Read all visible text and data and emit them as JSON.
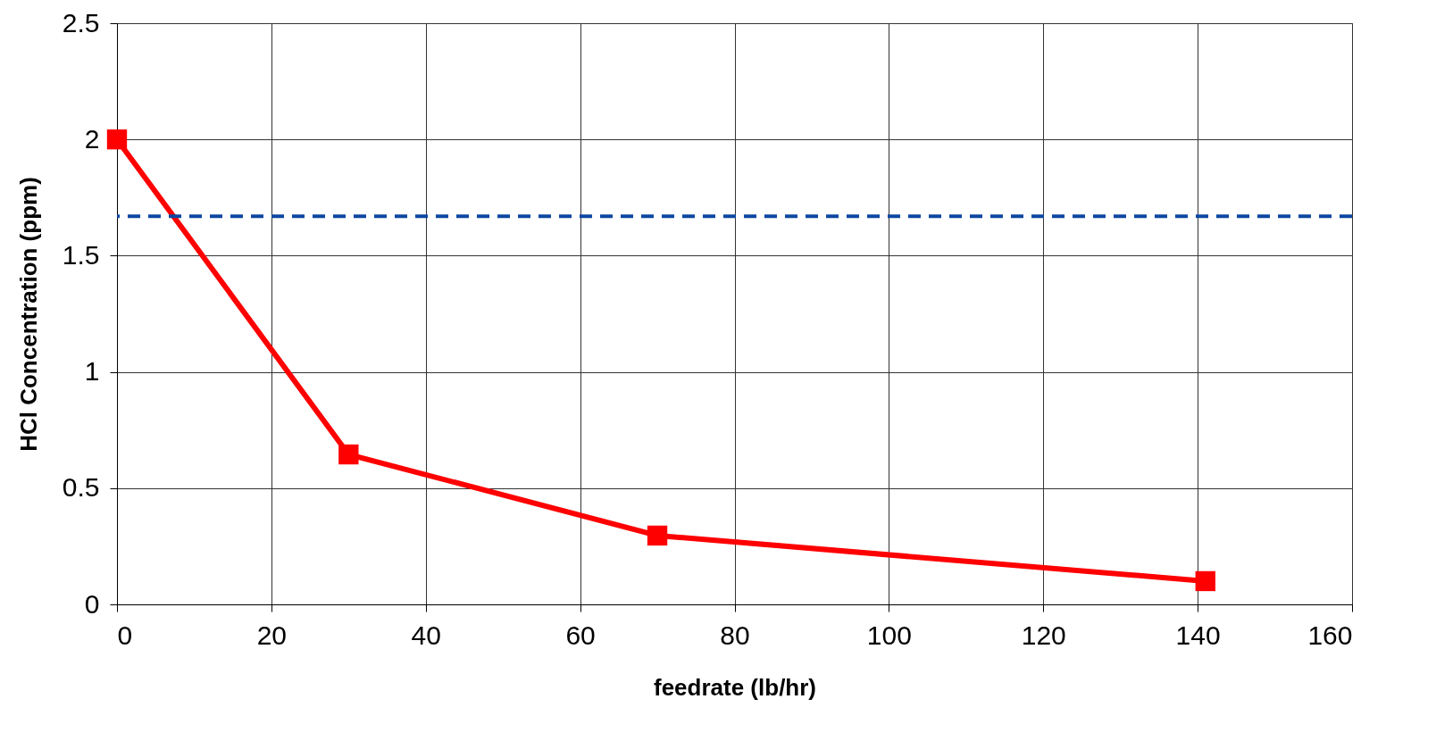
{
  "chart_data": {
    "type": "line",
    "xlabel": "feedrate (lb/hr)",
    "ylabel": "HCl Concentration (ppm)",
    "x": [
      0,
      30,
      70,
      141
    ],
    "series": [
      {
        "color": "#ff0000",
        "values": [
          2.0,
          0.645,
          0.296,
          0.1
        ]
      }
    ],
    "xlim": [
      0,
      160
    ],
    "xticks": [
      0,
      20,
      40,
      60,
      80,
      100,
      120,
      140,
      160
    ],
    "ylim": [
      0,
      2.5
    ],
    "yticks": [
      0,
      0.5,
      1,
      1.5,
      2,
      2.5
    ],
    "ref_lines": [
      {
        "axis": "y",
        "value": 1.67,
        "color": "#0d47a1",
        "line_style": "dashed"
      }
    ],
    "grid": true,
    "marker": "square",
    "line_style": "solid"
  }
}
